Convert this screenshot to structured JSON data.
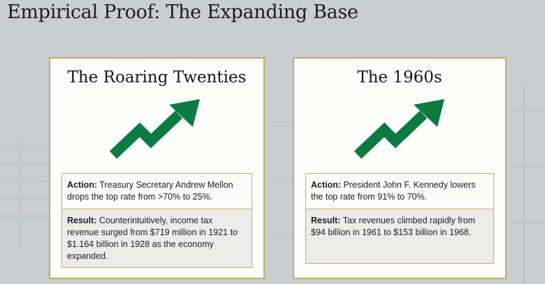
{
  "slide": {
    "title": "Empirical Proof: The Expanding Base"
  },
  "cards": [
    {
      "title": "The Roaring Twenties",
      "arrow_icon": "rising-trend-arrow",
      "action_label": "Action:",
      "action_text": "Treasury Secretary Andrew Mellon drops the top rate from >70% to 25%.",
      "result_label": "Result:",
      "result_text": "Counterintuitively, income tax revenue surged from $719 million in 1921 to $1.164 billion in 1928 as the economy expanded."
    },
    {
      "title": "The 1960s",
      "arrow_icon": "rising-trend-arrow",
      "action_label": "Action:",
      "action_text": "President John F. Kennedy lowers the top rate from 91% to 70%.",
      "result_label": "Result:",
      "result_text": "Tax revenues climbed rapidly from $94 billion in 1961 to $153 billion in 1968."
    }
  ],
  "colors": {
    "accent_green": "#0c7a43",
    "border_gold": "#c9a860",
    "background": "#c9ced1"
  }
}
